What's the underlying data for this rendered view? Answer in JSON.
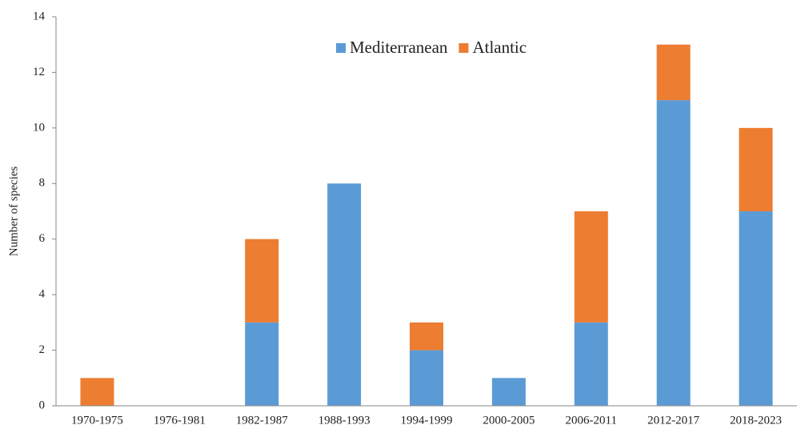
{
  "chart_data": {
    "type": "stacked_bar",
    "y_label": "Number of species",
    "categories": [
      "1970-1975",
      "1976-1981",
      "1982-1987",
      "1988-1993",
      "1994-1999",
      "2000-2005",
      "2006-2011",
      "2012-2017",
      "2018-2023"
    ],
    "series": [
      {
        "name": "Mediterranean",
        "color": "#5b9bd5",
        "values": [
          0,
          0,
          3,
          8,
          2,
          1,
          3,
          11,
          7
        ]
      },
      {
        "name": "Atlantic",
        "color": "#ed7d31",
        "values": [
          1,
          0,
          3,
          0,
          1,
          0,
          4,
          2,
          3
        ]
      }
    ],
    "ylim": [
      0,
      14
    ],
    "yticks": [
      0,
      2,
      4,
      6,
      8,
      10,
      12,
      14
    ],
    "legend": "top"
  }
}
